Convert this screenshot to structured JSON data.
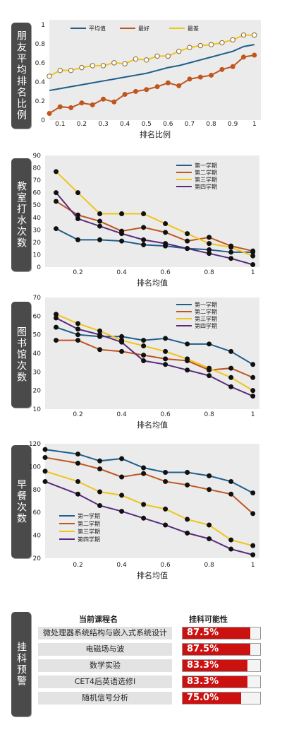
{
  "colors": {
    "navy": "#1f5f8b",
    "orange": "#c0561f",
    "yellow": "#f0c419",
    "purple": "#5a2a7a",
    "red": "#cc1111",
    "panel_bg": "#ebebeb"
  },
  "chart_data": [
    {
      "id": "c1",
      "type": "line",
      "side_label": "朋友平均排名比例",
      "xlabel": "排名比例",
      "xlim": [
        0.05,
        1.03
      ],
      "ylim": [
        0,
        1.05
      ],
      "xticks": [
        "0.1",
        "0.2",
        "0.3",
        "0.4",
        "0.5",
        "0.6",
        "0.7",
        "0.8",
        "0.9",
        "1"
      ],
      "xtick_values": [
        0.1,
        0.2,
        0.3,
        0.4,
        0.5,
        0.6,
        0.7,
        0.8,
        0.9,
        1.0
      ],
      "yticks": [
        "0",
        "0.2",
        "0.4",
        "0.6",
        "0.8",
        "1"
      ],
      "ytick_values": [
        0,
        0.2,
        0.4,
        0.6,
        0.8,
        1.0
      ],
      "legend_position": "top",
      "series": [
        {
          "name": "平均值",
          "color_key": "navy",
          "marker": "none",
          "x": [
            0.05,
            0.1,
            0.15,
            0.2,
            0.25,
            0.3,
            0.35,
            0.4,
            0.45,
            0.5,
            0.55,
            0.6,
            0.65,
            0.7,
            0.75,
            0.8,
            0.85,
            0.9,
            0.95,
            1.0
          ],
          "y": [
            0.31,
            0.33,
            0.35,
            0.37,
            0.39,
            0.41,
            0.43,
            0.45,
            0.47,
            0.49,
            0.52,
            0.55,
            0.57,
            0.6,
            0.63,
            0.66,
            0.69,
            0.72,
            0.77,
            0.79
          ]
        },
        {
          "name": "最好",
          "color_key": "orange",
          "marker": "filled",
          "x": [
            0.05,
            0.1,
            0.15,
            0.2,
            0.25,
            0.3,
            0.35,
            0.4,
            0.45,
            0.5,
            0.55,
            0.6,
            0.65,
            0.7,
            0.75,
            0.8,
            0.85,
            0.9,
            0.95,
            1.0
          ],
          "y": [
            0.07,
            0.14,
            0.13,
            0.18,
            0.16,
            0.22,
            0.19,
            0.27,
            0.3,
            0.32,
            0.35,
            0.39,
            0.36,
            0.43,
            0.45,
            0.47,
            0.53,
            0.56,
            0.66,
            0.68
          ]
        },
        {
          "name": "最差",
          "color_key": "yellow",
          "marker": "open",
          "x": [
            0.05,
            0.1,
            0.15,
            0.2,
            0.25,
            0.3,
            0.35,
            0.4,
            0.45,
            0.5,
            0.55,
            0.6,
            0.65,
            0.7,
            0.75,
            0.8,
            0.85,
            0.9,
            0.95,
            1.0
          ],
          "y": [
            0.46,
            0.52,
            0.52,
            0.55,
            0.57,
            0.57,
            0.6,
            0.59,
            0.64,
            0.63,
            0.67,
            0.67,
            0.72,
            0.76,
            0.78,
            0.79,
            0.81,
            0.84,
            0.89,
            0.89
          ]
        }
      ]
    },
    {
      "id": "c2",
      "type": "line",
      "side_label": "教室打水次数",
      "xlabel": "排名均值",
      "xlim": [
        0.05,
        1.03
      ],
      "ylim": [
        0,
        90
      ],
      "xticks": [
        "0.2",
        "0.4",
        "0.6",
        "0.8",
        "1"
      ],
      "xtick_values": [
        0.2,
        0.4,
        0.6,
        0.8,
        1.0
      ],
      "yticks": [
        "0",
        "10",
        "20",
        "30",
        "40",
        "50",
        "60",
        "70",
        "80",
        "90"
      ],
      "ytick_values": [
        0,
        10,
        20,
        30,
        40,
        50,
        60,
        70,
        80,
        90
      ],
      "legend_position": "top-right",
      "series": [
        {
          "name": "第一学期",
          "color_key": "navy",
          "marker": "filled",
          "x": [
            0.1,
            0.2,
            0.3,
            0.4,
            0.5,
            0.6,
            0.7,
            0.8,
            0.9,
            1.0
          ],
          "y": [
            31,
            22,
            22,
            21,
            18,
            17,
            15,
            14,
            12,
            12
          ]
        },
        {
          "name": "第二学期",
          "color_key": "orange",
          "marker": "filled",
          "x": [
            0.1,
            0.2,
            0.3,
            0.4,
            0.5,
            0.6,
            0.7,
            0.8,
            0.9,
            1.0
          ],
          "y": [
            53,
            42,
            37,
            29,
            32,
            28,
            21,
            24,
            17,
            13
          ]
        },
        {
          "name": "第三学期",
          "color_key": "yellow",
          "marker": "filled",
          "x": [
            0.1,
            0.2,
            0.3,
            0.4,
            0.5,
            0.6,
            0.7,
            0.8,
            0.9,
            1.0
          ],
          "y": [
            77,
            60,
            43,
            43,
            43,
            35,
            27,
            19,
            16,
            9
          ]
        },
        {
          "name": "第四学期",
          "color_key": "purple",
          "marker": "filled",
          "x": [
            0.1,
            0.2,
            0.3,
            0.4,
            0.5,
            0.6,
            0.7,
            0.8,
            0.9,
            1.0
          ],
          "y": [
            60,
            39,
            33,
            27,
            22,
            19,
            15,
            11,
            7,
            2
          ]
        }
      ]
    },
    {
      "id": "c3",
      "type": "line",
      "side_label": "图书馆次数",
      "xlabel": "排名均值",
      "xlim": [
        0.05,
        1.03
      ],
      "ylim": [
        10,
        70
      ],
      "xticks": [
        "0.2",
        "0.4",
        "0.6",
        "0.8",
        "1"
      ],
      "xtick_values": [
        0.2,
        0.4,
        0.6,
        0.8,
        1.0
      ],
      "yticks": [
        "10",
        "20",
        "30",
        "40",
        "50",
        "60",
        "70"
      ],
      "ytick_values": [
        10,
        20,
        30,
        40,
        50,
        60,
        70
      ],
      "legend_position": "top-right",
      "series": [
        {
          "name": "第一学期",
          "color_key": "navy",
          "marker": "filled",
          "x": [
            0.1,
            0.2,
            0.3,
            0.4,
            0.5,
            0.6,
            0.7,
            0.8,
            0.9,
            1.0
          ],
          "y": [
            54,
            50,
            49,
            49,
            47,
            48,
            45,
            45,
            41,
            34
          ]
        },
        {
          "name": "第二学期",
          "color_key": "orange",
          "marker": "filled",
          "x": [
            0.1,
            0.2,
            0.3,
            0.4,
            0.5,
            0.6,
            0.7,
            0.8,
            0.9,
            1.0
          ],
          "y": [
            47,
            47,
            42,
            41,
            39,
            37,
            36,
            31,
            32,
            27
          ]
        },
        {
          "name": "第三学期",
          "color_key": "yellow",
          "marker": "filled",
          "x": [
            0.1,
            0.2,
            0.3,
            0.4,
            0.5,
            0.6,
            0.7,
            0.8,
            0.9,
            1.0
          ],
          "y": [
            61,
            56,
            52,
            47,
            44,
            41,
            37,
            32,
            27,
            20
          ]
        },
        {
          "name": "第四学期",
          "color_key": "purple",
          "marker": "filled",
          "x": [
            0.1,
            0.2,
            0.3,
            0.4,
            0.5,
            0.6,
            0.7,
            0.8,
            0.9,
            1.0
          ],
          "y": [
            59,
            53,
            50,
            46,
            36,
            34,
            31,
            28,
            22,
            17
          ]
        }
      ]
    },
    {
      "id": "c4",
      "type": "line",
      "side_label": "早餐次数",
      "xlabel": "排名均值",
      "xlim": [
        0.05,
        1.03
      ],
      "ylim": [
        20,
        120
      ],
      "xticks": [
        "0.2",
        "0.4",
        "0.6",
        "0.8",
        "1"
      ],
      "xtick_values": [
        0.2,
        0.4,
        0.6,
        0.8,
        1.0
      ],
      "yticks": [
        "20",
        "40",
        "60",
        "80",
        "100",
        "120"
      ],
      "ytick_values": [
        20,
        40,
        60,
        80,
        100,
        120
      ],
      "legend_position": "bottom-left",
      "series": [
        {
          "name": "第一学期",
          "color_key": "navy",
          "marker": "filled",
          "x": [
            0.05,
            0.2,
            0.3,
            0.4,
            0.5,
            0.6,
            0.7,
            0.8,
            0.9,
            1.0
          ],
          "y": [
            115,
            111,
            105,
            107,
            99,
            95,
            95,
            92,
            87,
            77
          ]
        },
        {
          "name": "第二学期",
          "color_key": "orange",
          "marker": "filled",
          "x": [
            0.05,
            0.2,
            0.3,
            0.4,
            0.5,
            0.6,
            0.7,
            0.8,
            0.9,
            1.0
          ],
          "y": [
            108,
            103,
            98,
            91,
            94,
            87,
            84,
            80,
            76,
            59
          ]
        },
        {
          "name": "第三学期",
          "color_key": "yellow",
          "marker": "filled",
          "x": [
            0.05,
            0.2,
            0.3,
            0.4,
            0.5,
            0.6,
            0.7,
            0.8,
            0.9,
            1.0
          ],
          "y": [
            96,
            87,
            78,
            75,
            67,
            63,
            54,
            49,
            36,
            31
          ]
        },
        {
          "name": "第四学期",
          "color_key": "purple",
          "marker": "filled",
          "x": [
            0.05,
            0.2,
            0.3,
            0.4,
            0.5,
            0.6,
            0.7,
            0.8,
            0.9,
            1.0
          ],
          "y": [
            87,
            76,
            66,
            61,
            55,
            49,
            42,
            37,
            28,
            23
          ]
        }
      ]
    },
    {
      "id": "c5",
      "type": "table",
      "side_label": "挂科预警",
      "headers": {
        "course": "当前课程名",
        "prob": "挂科可能性"
      },
      "rows": [
        {
          "course": "微处理器系统结构与嵌入式系统设计",
          "label": "87.5%",
          "value": 87.5
        },
        {
          "course": "电磁场与波",
          "label": "87.5%",
          "value": 87.5
        },
        {
          "course": "数学实验",
          "label": "83.3%",
          "value": 83.3
        },
        {
          "course": "CET4后英语选修I",
          "label": "83.3%",
          "value": 83.3
        },
        {
          "course": "随机信号分析",
          "label": "75.0%",
          "value": 75.0
        }
      ]
    }
  ]
}
